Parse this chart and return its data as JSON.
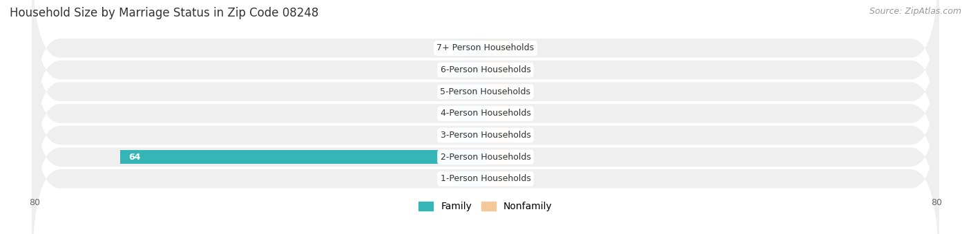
{
  "title": "Household Size by Marriage Status in Zip Code 08248",
  "source": "Source: ZipAtlas.com",
  "categories": [
    "1-Person Households",
    "2-Person Households",
    "3-Person Households",
    "4-Person Households",
    "5-Person Households",
    "6-Person Households",
    "7+ Person Households"
  ],
  "family_values": [
    0,
    64,
    0,
    0,
    0,
    0,
    0
  ],
  "nonfamily_values": [
    0,
    0,
    0,
    0,
    0,
    0,
    0
  ],
  "family_color_small": "#5ec8c8",
  "family_color_large": "#35b5b5",
  "nonfamily_color": "#f5c89a",
  "row_bg_color": "#efefef",
  "bg_color": "#ffffff",
  "xlim_left": -80,
  "xlim_right": 80,
  "stub_size": 5,
  "legend_family": "Family",
  "legend_nonfamily": "Nonfamily",
  "title_fontsize": 12,
  "source_fontsize": 9,
  "label_fontsize": 9,
  "value_fontsize": 9
}
